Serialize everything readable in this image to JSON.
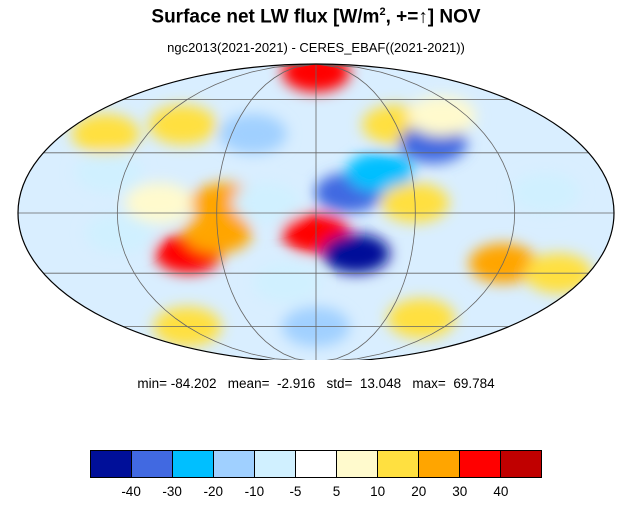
{
  "title_main": "Surface net LW flux [W/m",
  "title_sup": "2",
  "title_rest": ", +=↑]  NOV",
  "subtitle": "ngc2013(2021-2021) - CERES_EBAF((2021-2021))",
  "stats": "min= -84.202   mean=  -2.916   std=  13.048   max=  69.784",
  "colorbar": {
    "colors": [
      "#000f99",
      "#4169e1",
      "#00bfff",
      "#a0d0ff",
      "#d0f0ff",
      "#ffffff",
      "#fffacd",
      "#ffe040",
      "#ffa500",
      "#ff0000",
      "#c00000"
    ],
    "ticks": [
      "-40",
      "-30",
      "-20",
      "-10",
      "-5",
      "5",
      "10",
      "20",
      "30",
      "40"
    ]
  },
  "patches": [
    {
      "lon": -150,
      "lat": 40,
      "v": 15
    },
    {
      "lon": -130,
      "lat": 20,
      "v": -10
    },
    {
      "lon": -120,
      "lat": -10,
      "v": -8
    },
    {
      "lon": -100,
      "lat": 45,
      "v": 12
    },
    {
      "lon": -95,
      "lat": 5,
      "v": 8
    },
    {
      "lon": -80,
      "lat": -20,
      "v": 30
    },
    {
      "lon": -60,
      "lat": -10,
      "v": 25
    },
    {
      "lon": -55,
      "lat": 5,
      "v": 22
    },
    {
      "lon": -45,
      "lat": 40,
      "v": -12
    },
    {
      "lon": -20,
      "lat": -35,
      "v": -8
    },
    {
      "lon": 0,
      "lat": -10,
      "v": 35
    },
    {
      "lon": 20,
      "lat": 10,
      "v": -35
    },
    {
      "lon": 25,
      "lat": -20,
      "v": -45
    },
    {
      "lon": 40,
      "lat": 20,
      "v": -25
    },
    {
      "lon": 60,
      "lat": 45,
      "v": 10
    },
    {
      "lon": 80,
      "lat": 35,
      "v": -40
    },
    {
      "lon": 100,
      "lat": 50,
      "v": 8
    },
    {
      "lon": 120,
      "lat": -25,
      "v": 25
    },
    {
      "lon": 140,
      "lat": 10,
      "v": -10
    },
    {
      "lon": 160,
      "lat": -30,
      "v": 12
    },
    {
      "lon": 0,
      "lat": -60,
      "v": -12
    },
    {
      "lon": 90,
      "lat": -55,
      "v": 15
    },
    {
      "lon": -120,
      "lat": -60,
      "v": 10
    },
    {
      "lon": 0,
      "lat": 80,
      "v": 30
    },
    {
      "lon": 60,
      "lat": 5,
      "v": 10
    },
    {
      "lon": -30,
      "lat": 5,
      "v": -8
    }
  ]
}
